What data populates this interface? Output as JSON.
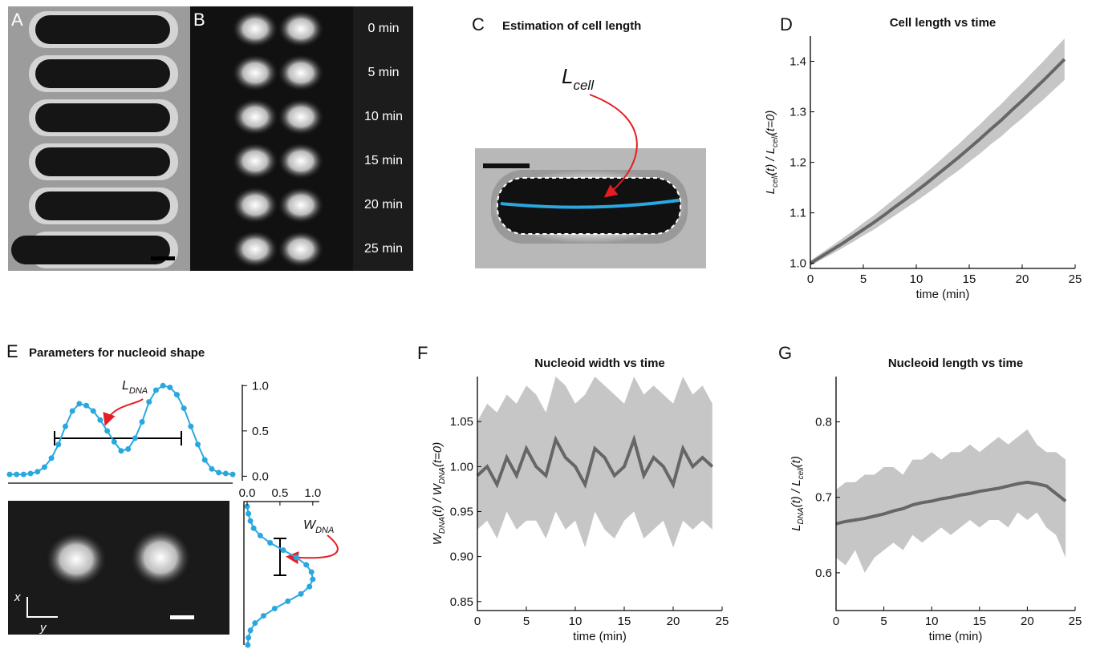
{
  "labels": {
    "a": "A",
    "b": "B",
    "c": "C",
    "d": "D",
    "e": "E",
    "f": "F",
    "g": "G"
  },
  "b_times": [
    "0 min",
    "5 min",
    "10 min",
    "15 min",
    "20 min",
    "25 min"
  ],
  "c_title": "Estimation of cell length",
  "c_symbol": [
    "L",
    "cell"
  ],
  "e_title": "Parameters for nucleoid shape",
  "e_ldna": [
    "L",
    "DNA"
  ],
  "e_wdna": [
    "W",
    "DNA"
  ],
  "e_axes": [
    "x",
    "y"
  ],
  "chart_data": [
    {
      "type": "line",
      "title": "Cell length vs time",
      "xlabel": "time (min)",
      "ylabel": [
        "L",
        "cell",
        "(t) / L",
        "cell",
        "(t=0)"
      ],
      "color": "#666666",
      "band_color": "#c6c6c6",
      "x": [
        0,
        1,
        2,
        3,
        4,
        5,
        6,
        7,
        8,
        9,
        10,
        11,
        12,
        13,
        14,
        15,
        16,
        17,
        18,
        19,
        20,
        21,
        22,
        23,
        24
      ],
      "values": [
        1.0,
        1.013,
        1.026,
        1.039,
        1.053,
        1.067,
        1.081,
        1.096,
        1.112,
        1.127,
        1.143,
        1.159,
        1.176,
        1.193,
        1.21,
        1.228,
        1.246,
        1.265,
        1.283,
        1.303,
        1.322,
        1.342,
        1.362,
        1.383,
        1.404
      ],
      "upper": [
        1.005,
        1.02,
        1.034,
        1.049,
        1.064,
        1.08,
        1.095,
        1.112,
        1.129,
        1.146,
        1.163,
        1.181,
        1.199,
        1.218,
        1.236,
        1.256,
        1.275,
        1.296,
        1.315,
        1.337,
        1.357,
        1.379,
        1.4,
        1.423,
        1.445
      ],
      "lower": [
        0.995,
        1.007,
        1.018,
        1.03,
        1.042,
        1.055,
        1.067,
        1.081,
        1.095,
        1.109,
        1.123,
        1.138,
        1.153,
        1.169,
        1.184,
        1.201,
        1.217,
        1.235,
        1.251,
        1.27,
        1.287,
        1.306,
        1.324,
        1.344,
        1.363
      ],
      "xlim": [
        0,
        25
      ],
      "xticks": [
        0,
        5,
        10,
        15,
        20,
        25
      ],
      "ylim": [
        0.99,
        1.45
      ],
      "yticks": [
        {
          "value": 1,
          "label": "1.0"
        },
        1.1,
        1.2,
        1.3,
        1.4
      ]
    },
    {
      "type": "line",
      "title": "Nucleoid width vs time",
      "xlabel": "time (min)",
      "ylabel": [
        "W",
        "DNA",
        "(t) / W",
        "DNA",
        "(t=0)"
      ],
      "color": "#666666",
      "band_color": "#c6c6c6",
      "x": [
        0,
        1,
        2,
        3,
        4,
        5,
        6,
        7,
        8,
        9,
        10,
        11,
        12,
        13,
        14,
        15,
        16,
        17,
        18,
        19,
        20,
        21,
        22,
        23,
        24
      ],
      "values": [
        0.99,
        1.0,
        0.98,
        1.01,
        0.99,
        1.02,
        1.0,
        0.99,
        1.03,
        1.01,
        1.0,
        0.98,
        1.02,
        1.01,
        0.99,
        1.0,
        1.03,
        0.99,
        1.01,
        1.0,
        0.98,
        1.02,
        1.0,
        1.01,
        1.0
      ],
      "upper": [
        1.05,
        1.07,
        1.06,
        1.08,
        1.07,
        1.09,
        1.08,
        1.06,
        1.1,
        1.09,
        1.07,
        1.08,
        1.1,
        1.09,
        1.08,
        1.07,
        1.1,
        1.08,
        1.09,
        1.08,
        1.07,
        1.1,
        1.08,
        1.09,
        1.07
      ],
      "lower": [
        0.93,
        0.94,
        0.92,
        0.95,
        0.93,
        0.94,
        0.94,
        0.92,
        0.95,
        0.93,
        0.94,
        0.91,
        0.95,
        0.93,
        0.92,
        0.94,
        0.95,
        0.92,
        0.93,
        0.94,
        0.91,
        0.94,
        0.93,
        0.94,
        0.93
      ],
      "xlim": [
        0,
        25
      ],
      "xticks": [
        0,
        5,
        10,
        15,
        20,
        25
      ],
      "ylim": [
        0.84,
        1.1
      ],
      "yticks": [
        0.85,
        {
          "value": 0.9,
          "label": "0.90"
        },
        0.95,
        {
          "value": 1,
          "label": "1.00"
        },
        1.05
      ]
    },
    {
      "type": "line",
      "title": "Nucleoid length vs time",
      "xlabel": "time (min)",
      "ylabel": [
        "L",
        "DNA",
        "(t) / L",
        "cell",
        "(t)"
      ],
      "color": "#666666",
      "band_color": "#c6c6c6",
      "x": [
        0,
        1,
        2,
        3,
        4,
        5,
        6,
        7,
        8,
        9,
        10,
        11,
        12,
        13,
        14,
        15,
        16,
        17,
        18,
        19,
        20,
        21,
        22,
        23,
        24
      ],
      "values": [
        0.665,
        0.668,
        0.67,
        0.672,
        0.675,
        0.678,
        0.682,
        0.685,
        0.69,
        0.693,
        0.695,
        0.698,
        0.7,
        0.703,
        0.705,
        0.708,
        0.71,
        0.712,
        0.715,
        0.718,
        0.72,
        0.718,
        0.715,
        0.705,
        0.695
      ],
      "upper": [
        0.71,
        0.72,
        0.72,
        0.73,
        0.73,
        0.74,
        0.74,
        0.73,
        0.75,
        0.75,
        0.76,
        0.75,
        0.76,
        0.76,
        0.77,
        0.76,
        0.77,
        0.78,
        0.77,
        0.78,
        0.79,
        0.77,
        0.76,
        0.76,
        0.75
      ],
      "lower": [
        0.62,
        0.61,
        0.63,
        0.6,
        0.62,
        0.63,
        0.64,
        0.63,
        0.65,
        0.64,
        0.65,
        0.66,
        0.65,
        0.66,
        0.67,
        0.66,
        0.67,
        0.67,
        0.66,
        0.68,
        0.67,
        0.68,
        0.66,
        0.65,
        0.62
      ],
      "xlim": [
        0,
        25
      ],
      "xticks": [
        0,
        5,
        10,
        15,
        20,
        25
      ],
      "ylim": [
        0.55,
        0.86
      ],
      "yticks": [
        0.6,
        0.7,
        0.8
      ]
    },
    {
      "type": "profile-h",
      "color": "#29a8e0",
      "values": [
        0.02,
        0.02,
        0.02,
        0.03,
        0.05,
        0.1,
        0.2,
        0.35,
        0.55,
        0.72,
        0.8,
        0.78,
        0.72,
        0.62,
        0.5,
        0.38,
        0.28,
        0.3,
        0.42,
        0.6,
        0.82,
        0.95,
        1.0,
        0.98,
        0.9,
        0.75,
        0.55,
        0.35,
        0.18,
        0.08,
        0.04,
        0.03,
        0.02
      ],
      "ylim": [
        -0.05,
        1.1
      ],
      "yticks": [
        {
          "value": 0,
          "label": "0.0"
        },
        0.5,
        {
          "value": 1,
          "label": "1.0"
        }
      ]
    },
    {
      "type": "profile-v",
      "color": "#29a8e0",
      "values": [
        0.0,
        0.02,
        0.05,
        0.1,
        0.2,
        0.35,
        0.55,
        0.75,
        0.9,
        0.98,
        1.0,
        0.95,
        0.82,
        0.62,
        0.42,
        0.25,
        0.12,
        0.05,
        0.02,
        0.01
      ],
      "xlim": [
        0,
        1.1
      ],
      "xticks": [
        {
          "value": 0,
          "label": "0.0"
        },
        0.5,
        {
          "value": 1,
          "label": "1.0"
        }
      ]
    }
  ]
}
